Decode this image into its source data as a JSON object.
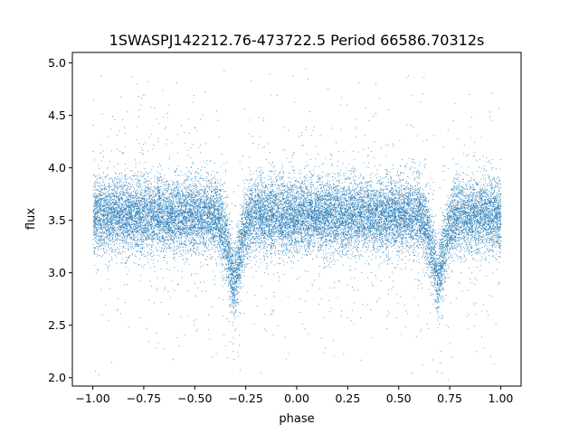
{
  "chart_data": {
    "type": "scatter",
    "title": "1SWASPJ142212.76-473722.5 Period 66586.70312s",
    "xlabel": "phase",
    "ylabel": "flux",
    "xlim": [
      -1.1,
      1.1
    ],
    "ylim": [
      1.92,
      5.1
    ],
    "x_ticks": [
      -1.0,
      -0.75,
      -0.5,
      -0.25,
      0.0,
      0.25,
      0.5,
      0.75,
      1.0
    ],
    "x_tick_labels": [
      "−1.00",
      "−0.75",
      "−0.50",
      "−0.25",
      "0.00",
      "0.25",
      "0.50",
      "0.75",
      "1.00"
    ],
    "y_ticks": [
      2.0,
      2.5,
      3.0,
      3.5,
      4.0,
      4.5,
      5.0
    ],
    "y_tick_labels": [
      "2.0",
      "2.5",
      "3.0",
      "3.5",
      "4.0",
      "4.5",
      "5.0"
    ],
    "grid": false,
    "marker_color": "#1f77b4",
    "series": [
      {
        "phase_range": [
          -1.0,
          1.0
        ],
        "baseline_flux": 3.55,
        "eclipses": [
          {
            "phase_center": -0.31,
            "min_flux": 2.9,
            "half_width": 0.09
          },
          {
            "phase_center": 0.69,
            "min_flux": 2.9,
            "half_width": 0.09
          }
        ]
      }
    ]
  }
}
